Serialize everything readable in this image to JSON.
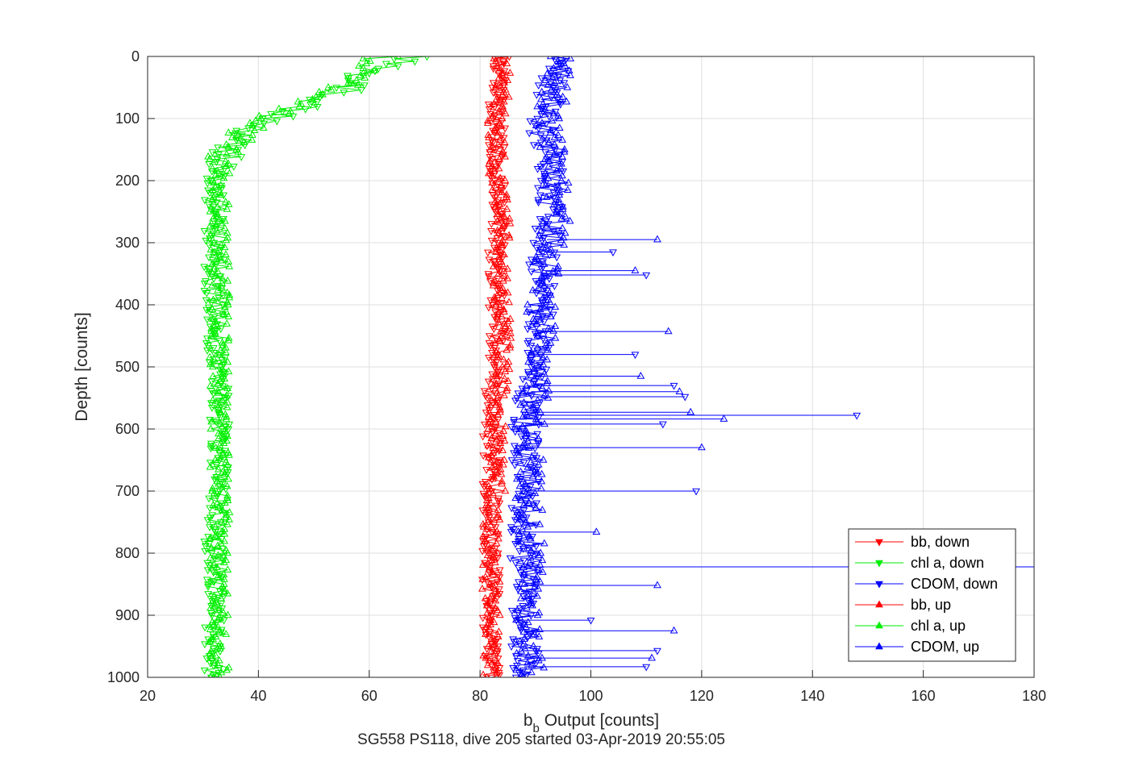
{
  "chart_data": {
    "type": "line",
    "title": "",
    "subtitle_line": "SG558 PS118, dive 205 started 03-Apr-2019 20:55:05",
    "xlabel_main": "b",
    "xlabel_sub": "b",
    "xlabel_rest": " Output [counts]",
    "ylabel": "Depth [counts]",
    "xlim": [
      20,
      180
    ],
    "ylim": [
      0,
      1000
    ],
    "y_reversed": true,
    "grid": true,
    "legend_position": "bottom-right",
    "xticks": [
      "20",
      "40",
      "60",
      "80",
      "100",
      "120",
      "140",
      "160",
      "180"
    ],
    "yticks": [
      "0",
      "100",
      "200",
      "300",
      "400",
      "500",
      "600",
      "700",
      "800",
      "900",
      "1000"
    ],
    "series": [
      {
        "name": "bb, down",
        "color": "#ff0000",
        "marker": "triangle-down",
        "depth": [
          0,
          50,
          100,
          150,
          200,
          250,
          300,
          350,
          400,
          450,
          500,
          550,
          600,
          650,
          700,
          750,
          800,
          850,
          900,
          950,
          1000
        ],
        "x": [
          84,
          83,
          83,
          83,
          83,
          83,
          83,
          83,
          83,
          83,
          83,
          82,
          82,
          82,
          82,
          82,
          82,
          82,
          82,
          82,
          82
        ]
      },
      {
        "name": "chl a, down",
        "color": "#00ee00",
        "marker": "triangle-down",
        "depth": [
          0,
          25,
          50,
          75,
          100,
          125,
          150,
          175,
          200,
          250,
          300,
          350,
          400,
          450,
          500,
          550,
          600,
          650,
          700,
          750,
          800,
          850,
          900,
          950,
          1000
        ],
        "x": [
          68,
          60,
          57,
          50,
          43,
          38,
          35,
          33,
          32,
          32,
          32,
          32,
          32,
          32,
          33,
          33,
          33,
          33,
          33,
          32,
          32,
          32,
          32,
          32,
          32
        ]
      },
      {
        "name": "CDOM, down",
        "color": "#0000ff",
        "marker": "triangle-down",
        "depth": [
          0,
          50,
          100,
          150,
          200,
          250,
          300,
          350,
          400,
          450,
          500,
          550,
          600,
          650,
          700,
          750,
          800,
          850,
          900,
          950,
          1000
        ],
        "x": [
          94,
          93,
          91,
          92,
          93,
          93,
          92,
          91,
          91,
          90,
          90,
          89,
          88,
          88,
          88,
          88,
          88,
          88,
          88,
          88,
          88
        ]
      },
      {
        "name": "bb, up",
        "color": "#ff0000",
        "marker": "triangle-up",
        "depth": [
          0,
          50,
          100,
          150,
          200,
          250,
          300,
          350,
          400,
          450,
          500,
          550,
          600,
          650,
          700,
          750,
          800,
          850,
          900,
          950,
          1000
        ],
        "x": [
          84,
          84,
          83,
          83,
          83,
          84,
          84,
          84,
          84,
          84,
          84,
          83,
          83,
          83,
          83,
          82,
          82,
          82,
          82,
          82,
          82
        ]
      },
      {
        "name": "chl a, up",
        "color": "#00ee00",
        "marker": "triangle-up",
        "depth": [
          0,
          25,
          50,
          75,
          100,
          125,
          150,
          175,
          200,
          250,
          300,
          350,
          400,
          450,
          500,
          550,
          600,
          650,
          700,
          750,
          800,
          850,
          900,
          950,
          1000
        ],
        "x": [
          62,
          58,
          55,
          48,
          42,
          37,
          34,
          33,
          33,
          33,
          33,
          33,
          33,
          33,
          33,
          33,
          33,
          33,
          33,
          33,
          33,
          33,
          33,
          33,
          33
        ]
      },
      {
        "name": "CDOM, up",
        "color": "#0000ff",
        "marker": "triangle-up",
        "depth": [
          0,
          50,
          100,
          150,
          200,
          250,
          300,
          350,
          400,
          450,
          500,
          550,
          600,
          650,
          700,
          750,
          800,
          850,
          900,
          950,
          1000
        ],
        "x": [
          95,
          94,
          92,
          93,
          94,
          94,
          93,
          92,
          91,
          91,
          91,
          90,
          89,
          89,
          89,
          89,
          89,
          89,
          89,
          89,
          89
        ]
      }
    ],
    "spikes": {
      "series": "CDOM",
      "points": [
        {
          "depth": 295,
          "x": 112
        },
        {
          "depth": 315,
          "x": 104
        },
        {
          "depth": 345,
          "x": 108
        },
        {
          "depth": 352,
          "x": 110
        },
        {
          "depth": 443,
          "x": 114
        },
        {
          "depth": 480,
          "x": 108
        },
        {
          "depth": 515,
          "x": 109
        },
        {
          "depth": 530,
          "x": 115
        },
        {
          "depth": 540,
          "x": 116
        },
        {
          "depth": 548,
          "x": 117
        },
        {
          "depth": 573,
          "x": 118
        },
        {
          "depth": 578,
          "x": 148
        },
        {
          "depth": 584,
          "x": 124
        },
        {
          "depth": 592,
          "x": 113
        },
        {
          "depth": 630,
          "x": 120
        },
        {
          "depth": 700,
          "x": 119
        },
        {
          "depth": 766,
          "x": 101
        },
        {
          "depth": 822,
          "x": 181
        },
        {
          "depth": 852,
          "x": 112
        },
        {
          "depth": 908,
          "x": 100
        },
        {
          "depth": 925,
          "x": 115
        },
        {
          "depth": 957,
          "x": 112
        },
        {
          "depth": 969,
          "x": 111
        },
        {
          "depth": 983,
          "x": 110
        }
      ]
    }
  }
}
